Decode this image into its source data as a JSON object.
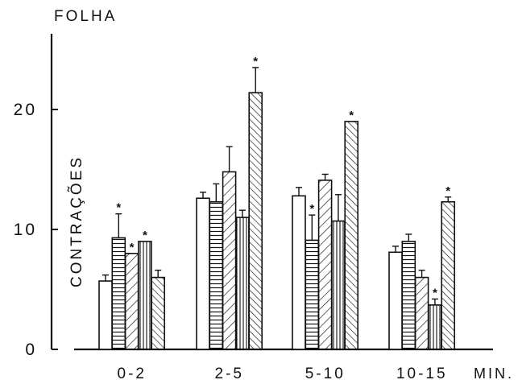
{
  "chart_data": {
    "type": "bar",
    "title": "FOLHA",
    "xlabel": "MIN.",
    "ylabel": "CONTRAÇÕES",
    "ylim": [
      0,
      25
    ],
    "yticks": [
      0,
      10,
      20
    ],
    "ytick_labels": [
      "0",
      "10",
      "20"
    ],
    "categories": [
      "0-2",
      "2-5",
      "5-10",
      "10-15"
    ],
    "significance_marker": "*",
    "grid": false,
    "series": [
      {
        "pattern": "blank",
        "values": [
          5.7,
          12.6,
          12.8,
          8.1
        ],
        "errors": [
          0.5,
          0.5,
          0.7,
          0.5
        ],
        "significant": [
          false,
          false,
          false,
          false
        ]
      },
      {
        "pattern": "horizontal-lines",
        "values": [
          9.3,
          12.3,
          9.1,
          9.0
        ],
        "errors": [
          2.0,
          1.5,
          2.1,
          0.6
        ],
        "significant": [
          true,
          false,
          true,
          false
        ]
      },
      {
        "pattern": "diagonal-lines",
        "values": [
          8.0,
          14.8,
          14.1,
          6.0
        ],
        "errors": [
          0.0,
          2.1,
          0.5,
          0.6
        ],
        "significant": [
          true,
          false,
          false,
          false
        ]
      },
      {
        "pattern": "vertical-lines",
        "values": [
          9.0,
          11.0,
          10.7,
          3.7
        ],
        "errors": [
          0.0,
          0.6,
          2.2,
          0.5
        ],
        "significant": [
          true,
          false,
          false,
          true
        ]
      },
      {
        "pattern": "dense-diagonal-lines",
        "values": [
          6.0,
          21.4,
          19.0,
          12.3
        ],
        "errors": [
          0.6,
          2.1,
          0.0,
          0.4
        ],
        "significant": [
          false,
          true,
          true,
          true
        ]
      }
    ]
  }
}
